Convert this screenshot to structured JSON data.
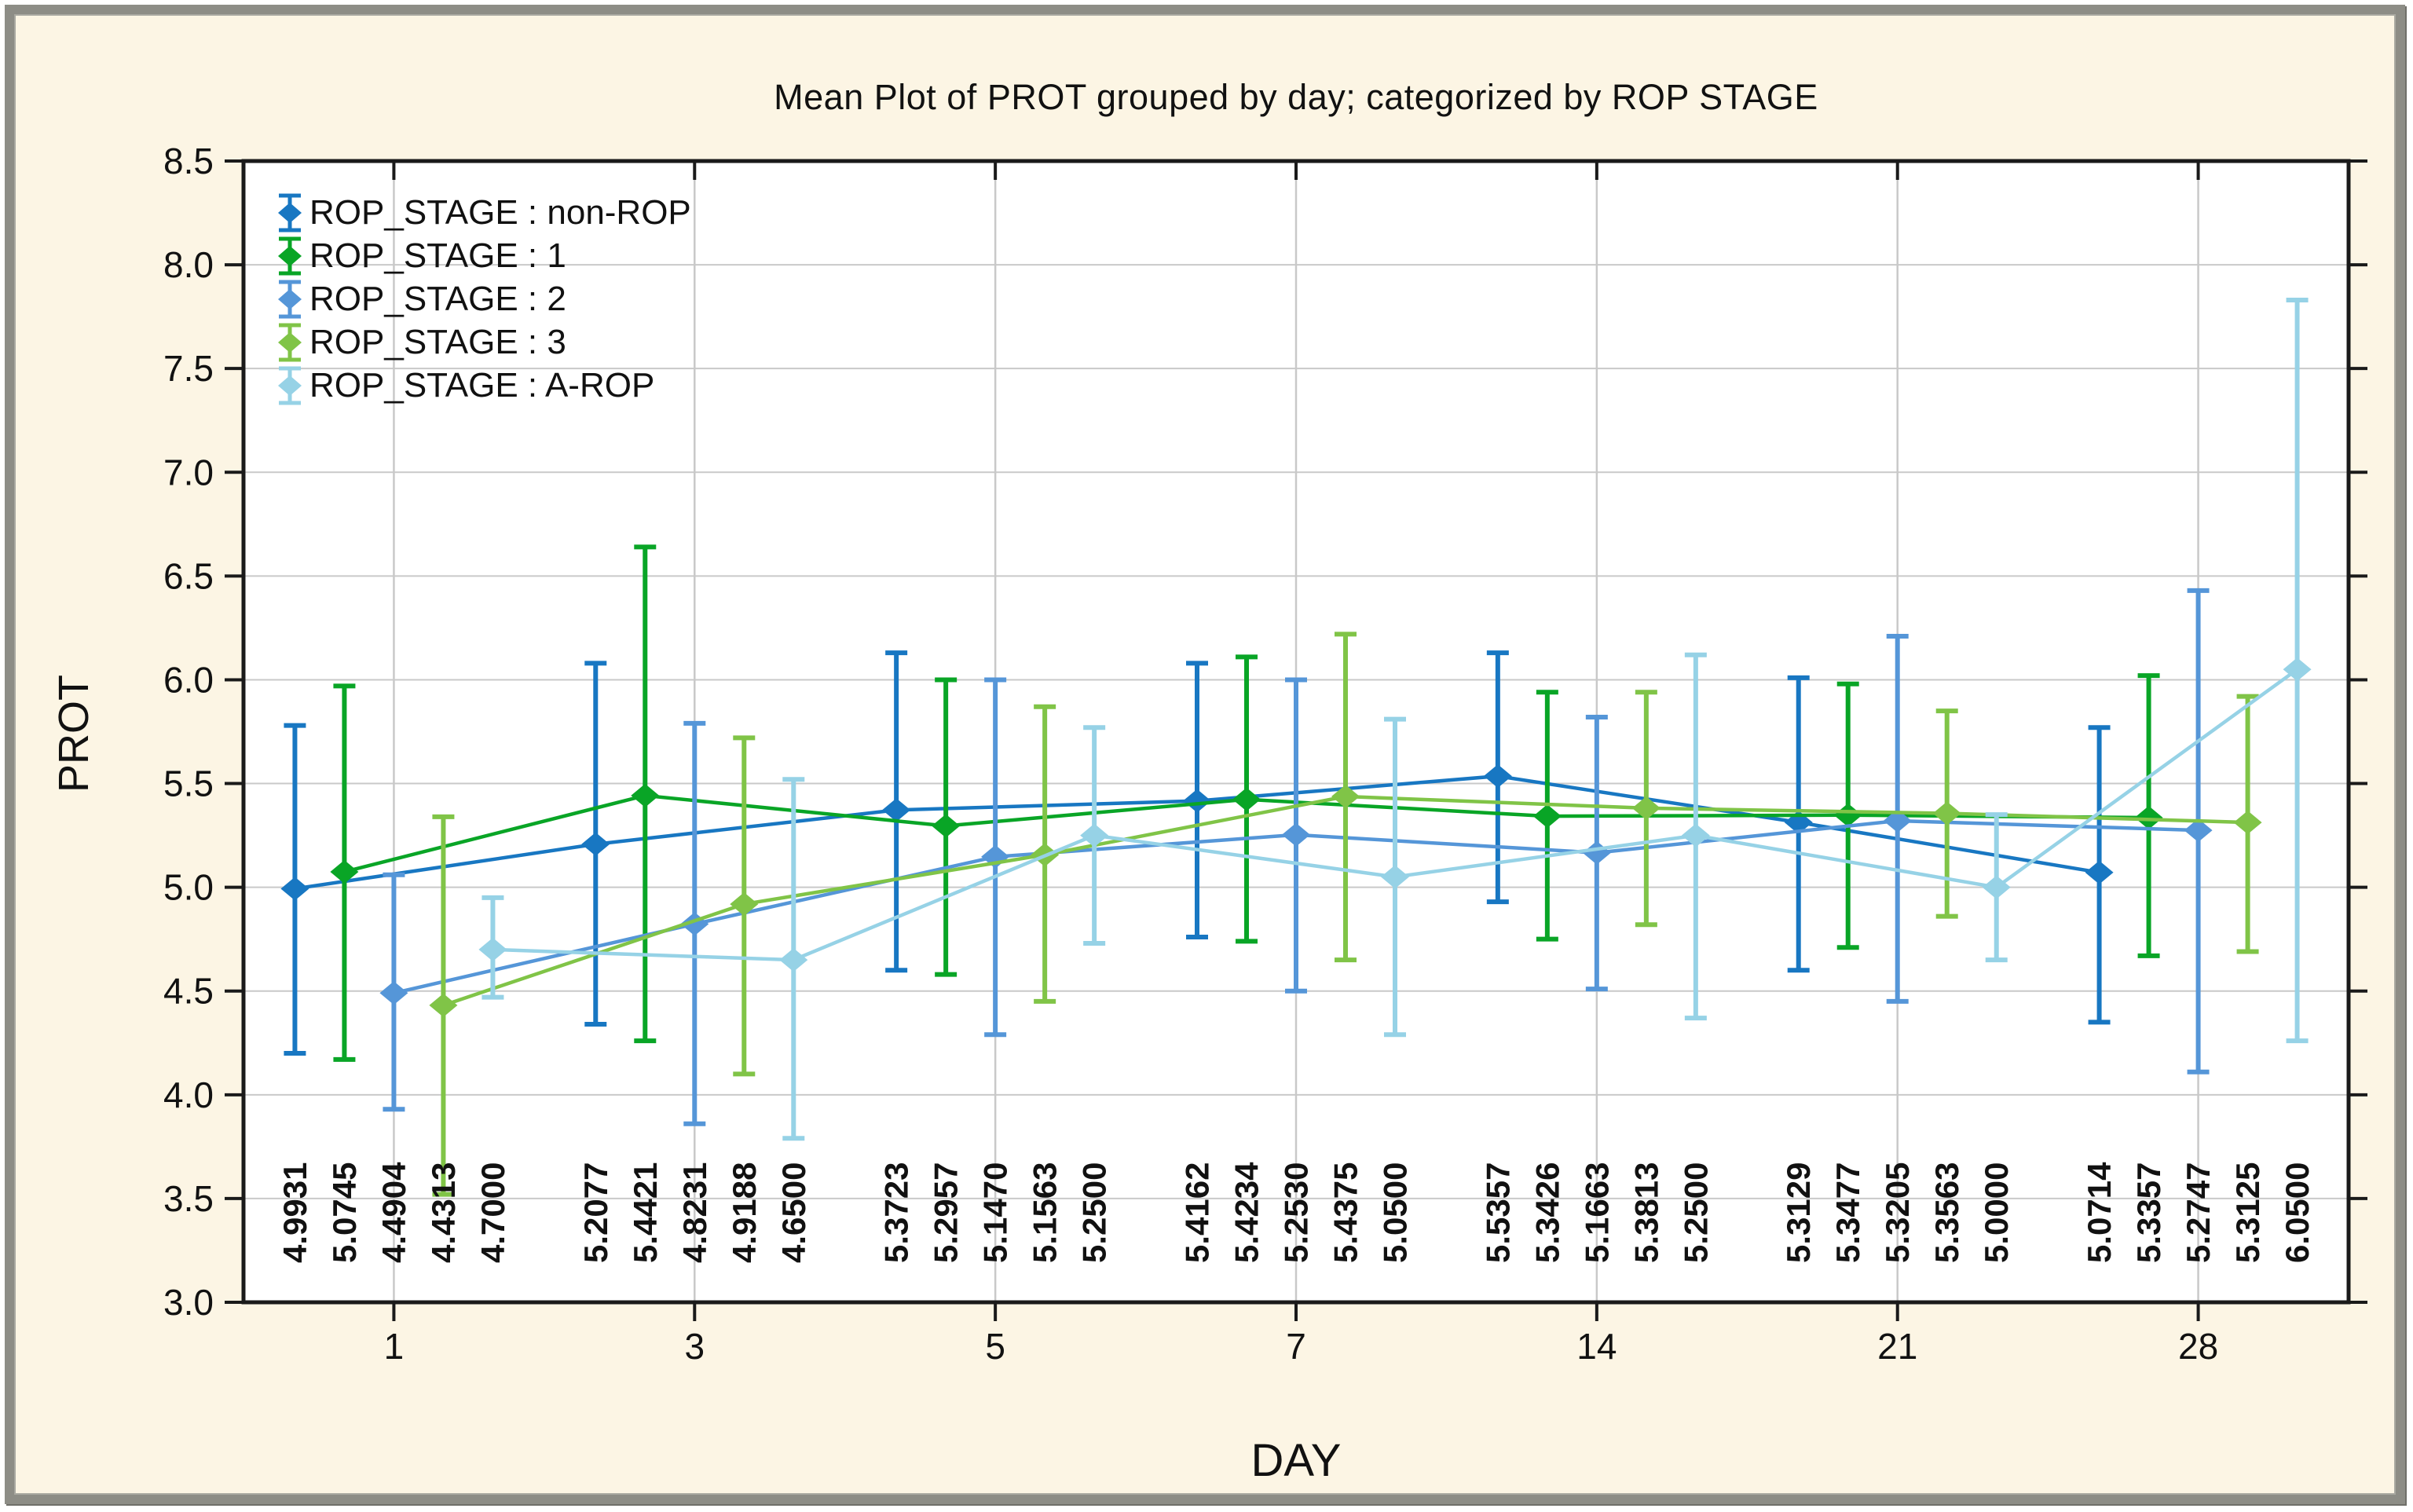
{
  "title": "Mean Plot of PROT grouped by day; categorized by ROP STAGE",
  "x_axis": {
    "label": "DAY",
    "ticks": [
      "1",
      "3",
      "5",
      "7",
      "14",
      "21",
      "28"
    ]
  },
  "y_axis": {
    "label": "PROT",
    "min": 3.0,
    "max": 8.5,
    "step": 0.5,
    "ticks": [
      "8.5",
      "8.0",
      "7.5",
      "7.0",
      "6.5",
      "6.0",
      "5.5",
      "5.0",
      "4.5",
      "4.0",
      "3.5",
      "3.0"
    ]
  },
  "colors": {
    "plot_bg": "#ffffff",
    "grid": "#c9c9c9",
    "axis": "#1a1a1a",
    "frame": "#8d8d86",
    "canvas_bg": "#fcf5e4",
    "text": "#111111"
  },
  "chart_data": {
    "type": "line",
    "error_bars": true,
    "grid": true,
    "legend_position": "top-left-inside",
    "categories": [
      "1",
      "3",
      "5",
      "7",
      "14",
      "21",
      "28"
    ],
    "ylim": [
      3.0,
      8.5
    ],
    "series": [
      {
        "name": "ROP_STAGE : non-ROP",
        "color": "#1877c2",
        "means": [
          4.9931,
          5.2077,
          5.3723,
          5.4162,
          5.5357,
          5.3129,
          5.0714
        ],
        "lo": [
          4.2,
          4.34,
          4.6,
          4.76,
          4.93,
          4.6,
          4.35
        ],
        "hi": [
          5.78,
          6.08,
          6.13,
          6.08,
          6.13,
          6.01,
          5.77
        ],
        "value_labels": [
          "4.9931",
          "5.2077",
          "5.3723",
          "5.4162",
          "5.5357",
          "5.3129",
          "5.0714"
        ]
      },
      {
        "name": "ROP_STAGE : 1",
        "color": "#09a526",
        "means": [
          5.0745,
          5.4421,
          5.2957,
          5.4234,
          5.3426,
          5.3477,
          5.3357
        ],
        "lo": [
          4.17,
          4.26,
          4.58,
          4.74,
          4.75,
          4.71,
          4.67
        ],
        "hi": [
          5.97,
          6.64,
          6.0,
          6.11,
          5.94,
          5.98,
          6.02
        ],
        "value_labels": [
          "5.0745",
          "5.4421",
          "5.2957",
          "5.4234",
          "5.3426",
          "5.3477",
          "5.3357"
        ]
      },
      {
        "name": "ROP_STAGE : 2",
        "color": "#5596d8",
        "means": [
          4.4904,
          4.8231,
          5.147,
          5.253,
          5.1663,
          5.3205,
          5.2747
        ],
        "lo": [
          3.93,
          3.86,
          4.29,
          4.5,
          4.51,
          4.45,
          4.11
        ],
        "hi": [
          5.06,
          5.79,
          6.0,
          6.0,
          5.82,
          6.21,
          6.43
        ],
        "value_labels": [
          "4.4904",
          "4.8231",
          "5.1470",
          "5.2530",
          "5.1663",
          "5.3205",
          "5.2747"
        ]
      },
      {
        "name": "ROP_STAGE : 3",
        "color": "#80c447",
        "means": [
          4.4313,
          4.9188,
          5.1563,
          5.4375,
          5.3813,
          5.3563,
          5.3125
        ],
        "lo": [
          3.52,
          4.1,
          4.45,
          4.65,
          4.82,
          4.86,
          4.69
        ],
        "hi": [
          5.34,
          5.72,
          5.87,
          6.22,
          5.94,
          5.85,
          5.92
        ],
        "value_labels": [
          "4.4313",
          "4.9188",
          "5.1563",
          "5.4375",
          "5.3813",
          "5.3563",
          "5.3125"
        ]
      },
      {
        "name": "ROP_STAGE : A-ROP",
        "color": "#96d2e6",
        "means": [
          4.7,
          4.65,
          5.25,
          5.05,
          5.25,
          5.0,
          6.05
        ],
        "lo": [
          4.47,
          3.79,
          4.73,
          4.29,
          4.37,
          4.65,
          4.26
        ],
        "hi": [
          4.95,
          5.52,
          5.77,
          5.81,
          6.12,
          5.35,
          7.83
        ],
        "value_labels": [
          "4.7000",
          "4.6500",
          "5.2500",
          "5.0500",
          "5.2500",
          "5.0000",
          "6.0500"
        ]
      }
    ]
  }
}
